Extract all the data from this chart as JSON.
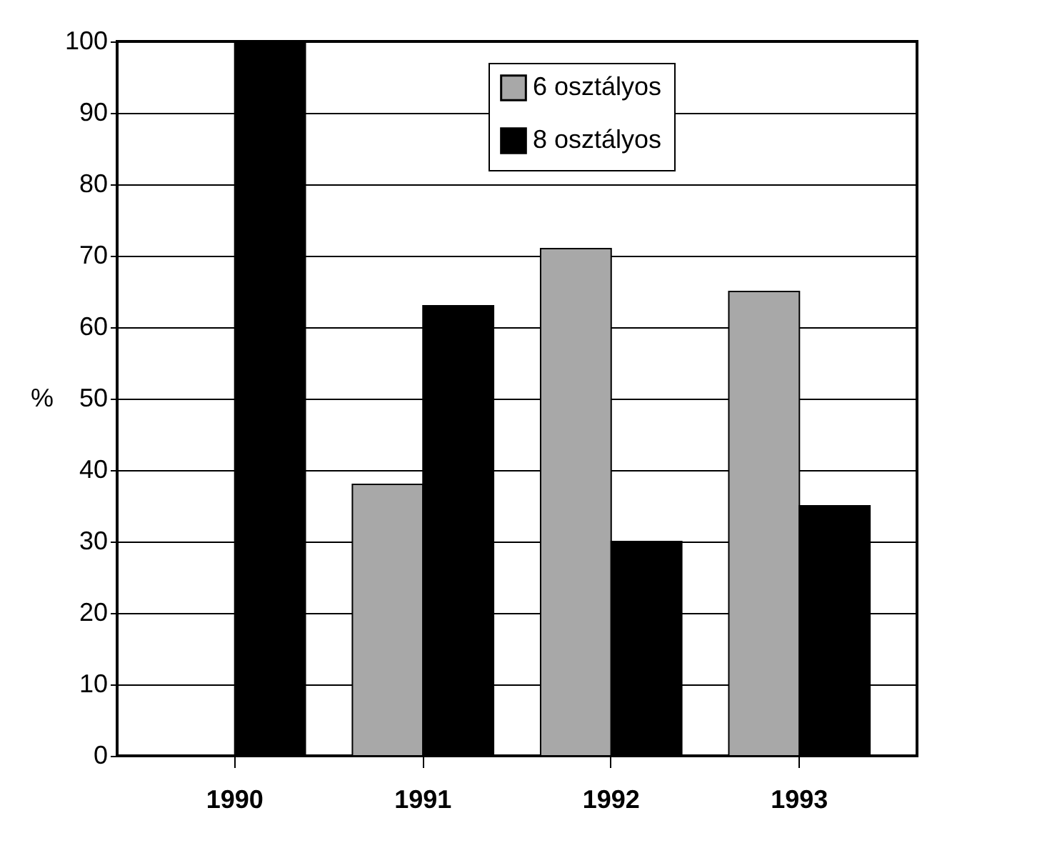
{
  "chart_data": {
    "type": "bar",
    "ylabel": "%",
    "categories": [
      "1990",
      "1991",
      "1992",
      "1993"
    ],
    "series": [
      {
        "name": "6 osztályos",
        "color": "#a8a8a8",
        "values": [
          null,
          38,
          71,
          65
        ]
      },
      {
        "name": "8 osztályos",
        "color": "#000000",
        "values": [
          100,
          63,
          30,
          35
        ]
      }
    ],
    "ylim": [
      0,
      100
    ],
    "yticks": [
      0,
      10,
      20,
      30,
      40,
      50,
      60,
      70,
      80,
      90,
      100
    ],
    "grid": "y",
    "legend": "top"
  }
}
